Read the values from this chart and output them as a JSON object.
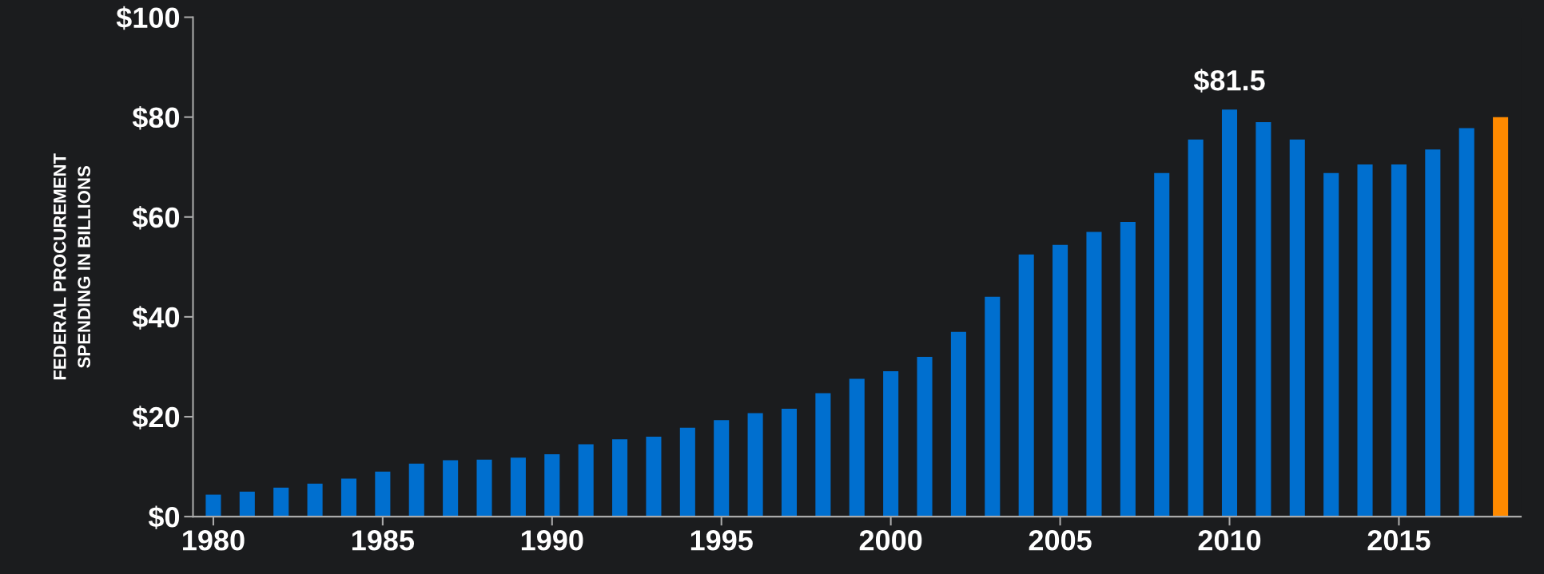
{
  "chart_data": {
    "type": "bar",
    "ylabel": "FEDERAL PROCUREMENT\nSPENDING IN BILLIONS",
    "x": [
      1980,
      1981,
      1982,
      1983,
      1984,
      1985,
      1986,
      1987,
      1988,
      1989,
      1990,
      1991,
      1992,
      1993,
      1994,
      1995,
      1996,
      1997,
      1998,
      1999,
      2000,
      2001,
      2002,
      2003,
      2004,
      2005,
      2006,
      2007,
      2008,
      2009,
      2010,
      2011,
      2012,
      2013,
      2014,
      2015,
      2016,
      2017,
      2018
    ],
    "values": [
      4.4,
      5.0,
      5.8,
      6.6,
      7.6,
      9.0,
      10.6,
      11.3,
      11.4,
      11.8,
      12.5,
      14.5,
      15.5,
      16.0,
      17.8,
      19.3,
      20.7,
      21.6,
      24.7,
      27.6,
      29.1,
      32.0,
      37.0,
      44.0,
      52.5,
      54.4,
      57.0,
      59.0,
      68.8,
      75.5,
      81.5,
      79.0,
      75.5,
      68.8,
      70.5,
      70.5,
      73.5,
      77.8,
      80.0
    ],
    "colors": [
      "#006fcf",
      "#006fcf",
      "#006fcf",
      "#006fcf",
      "#006fcf",
      "#006fcf",
      "#006fcf",
      "#006fcf",
      "#006fcf",
      "#006fcf",
      "#006fcf",
      "#006fcf",
      "#006fcf",
      "#006fcf",
      "#006fcf",
      "#006fcf",
      "#006fcf",
      "#006fcf",
      "#006fcf",
      "#006fcf",
      "#006fcf",
      "#006fcf",
      "#006fcf",
      "#006fcf",
      "#006fcf",
      "#006fcf",
      "#006fcf",
      "#006fcf",
      "#006fcf",
      "#006fcf",
      "#006fcf",
      "#006fcf",
      "#006fcf",
      "#006fcf",
      "#006fcf",
      "#006fcf",
      "#006fcf",
      "#006fcf",
      "#ff8a00"
    ],
    "annotations": [
      {
        "text": "$81.5",
        "x": 2010,
        "y": 81.5
      }
    ],
    "xlim": [
      1979.4,
      2018.6
    ],
    "xticks": [
      1980,
      1985,
      1990,
      1995,
      2000,
      2005,
      2010,
      2015
    ],
    "ylim": [
      0,
      100
    ],
    "yticks": [
      {
        "value": 0,
        "label": "$0"
      },
      {
        "value": 20,
        "label": "$20"
      },
      {
        "value": 40,
        "label": "$40"
      },
      {
        "value": 60,
        "label": "$60"
      },
      {
        "value": 80,
        "label": "$80"
      },
      {
        "value": 100,
        "label": "$100"
      }
    ],
    "grid": false,
    "legend": false
  }
}
